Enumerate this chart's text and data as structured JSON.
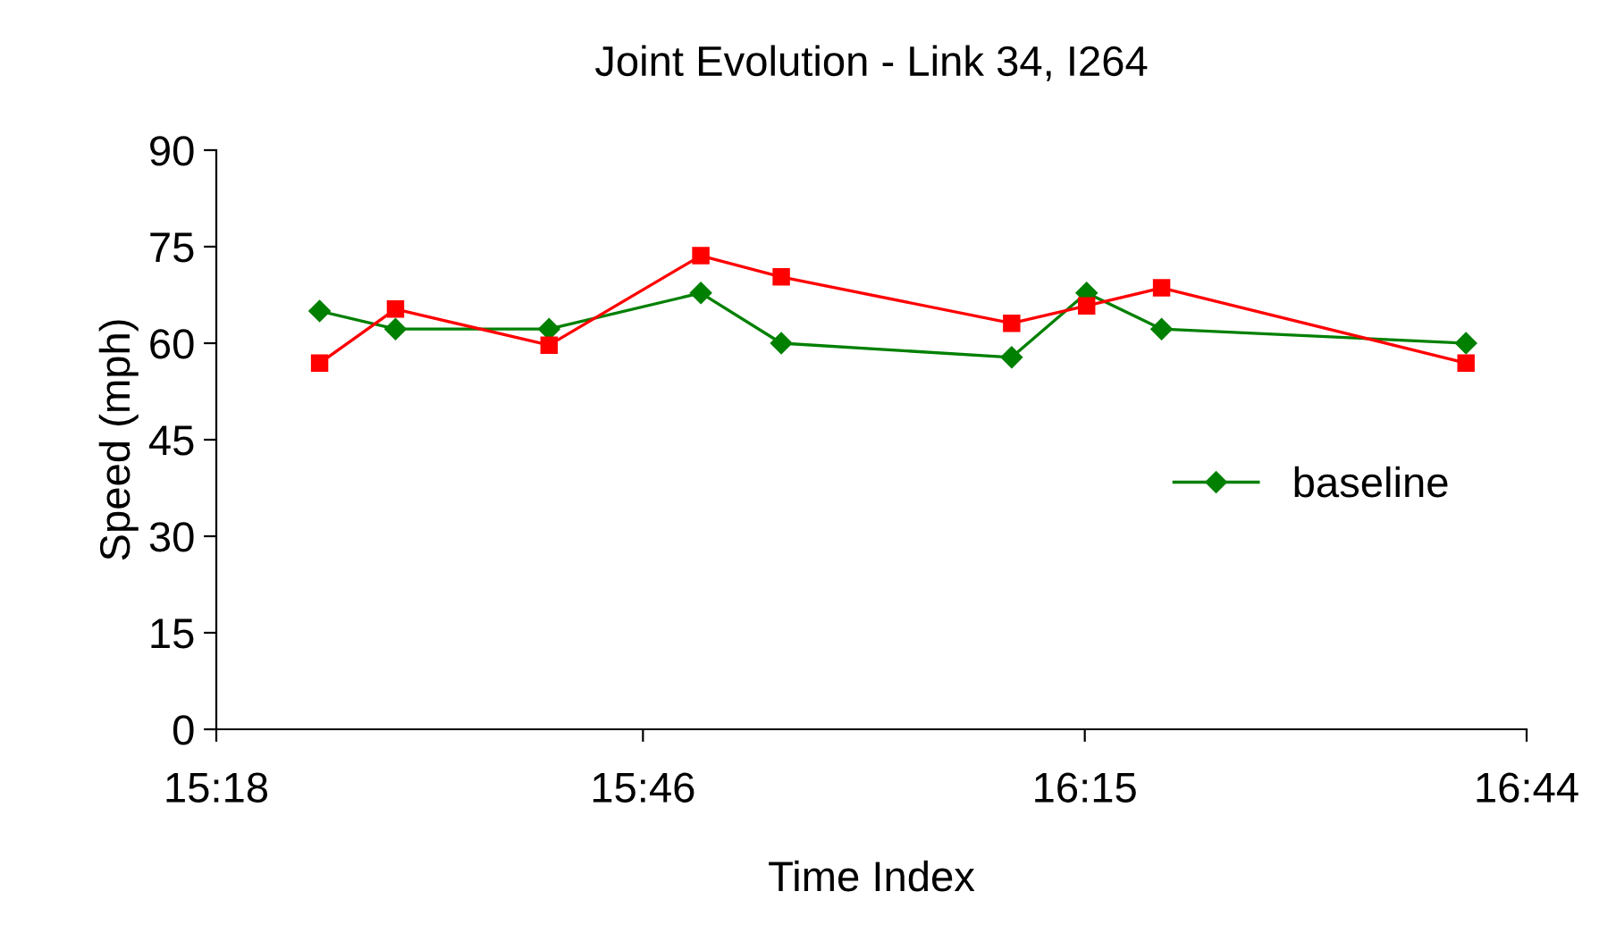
{
  "chart_data": {
    "type": "line",
    "title": "Joint Evolution - Link 34, I264",
    "xlabel": "Time Index",
    "ylabel": "Speed (mph)",
    "x": [
      15.413,
      15.496,
      15.664,
      15.83,
      15.918,
      16.17,
      16.252,
      16.334,
      16.667
    ],
    "series": [
      {
        "name": "baseline",
        "color": "#008000",
        "marker": "diamond",
        "values": [
          65,
          62.2,
          62.2,
          67.8,
          60,
          57.8,
          67.8,
          62.2,
          60
        ]
      },
      {
        "color": "#ff0000",
        "marker": "square",
        "values": [
          56.9,
          65.3,
          59.7,
          73.6,
          70.3,
          63.1,
          65.8,
          68.6,
          56.9
        ]
      }
    ],
    "xlim": [
      15.3,
      16.7333
    ],
    "xticks": [
      {
        "value": 15.3,
        "label": "15:18"
      },
      {
        "value": 15.7667,
        "label": "15:46"
      },
      {
        "value": 16.25,
        "label": "16:15"
      },
      {
        "value": 16.7333,
        "label": "16:44"
      }
    ],
    "ylim": [
      0,
      90
    ],
    "yticks": [
      0,
      15,
      30,
      45,
      60,
      75,
      90
    ],
    "grid": false,
    "legend": "right"
  }
}
